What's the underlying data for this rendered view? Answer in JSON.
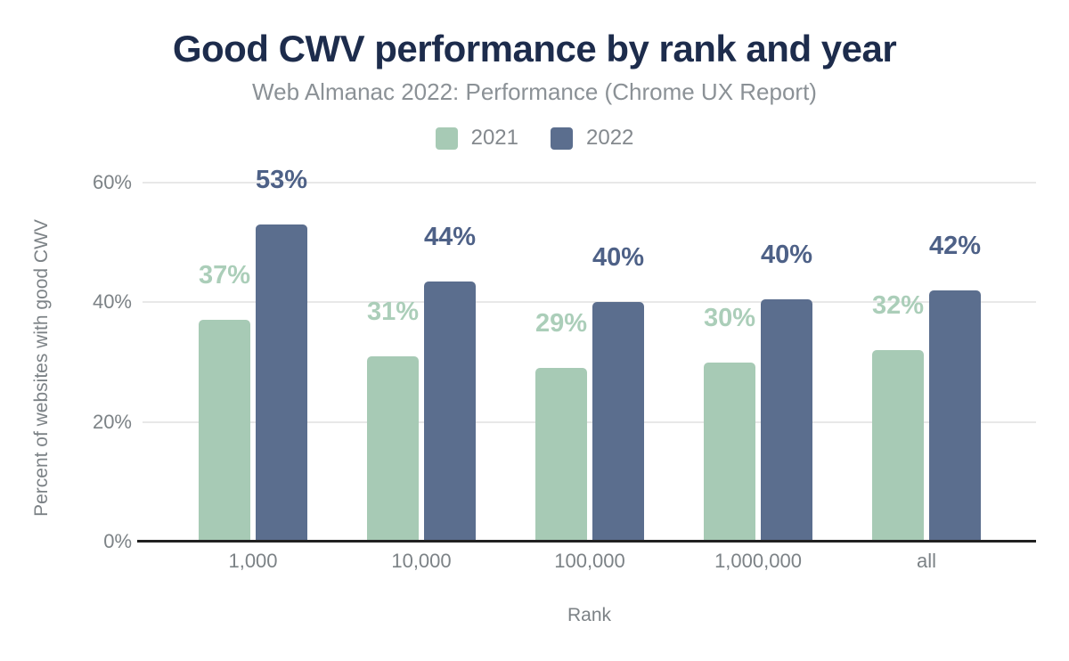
{
  "title": "Good CWV performance by rank and year",
  "subtitle": "Web Almanac 2022: Performance (Chrome UX Report)",
  "colors": {
    "background": "#ffffff",
    "title_text": "#1d2c4c",
    "subtitle_text": "#8b9196",
    "axis_text": "#7c8286",
    "legend_text": "#84898e",
    "gridline": "#e8e8e8",
    "baseline": "#212121",
    "series_2021": "#a7cab5",
    "series_2022": "#5b6e8e",
    "label_2021": "#abceb9",
    "label_2022": "#4e6187"
  },
  "chart_data": {
    "type": "bar",
    "title": "Good CWV performance by rank and year",
    "subtitle": "Web Almanac 2022: Performance (Chrome UX Report)",
    "categories": [
      "1,000",
      "10,000",
      "100,000",
      "1,000,000",
      "all"
    ],
    "series": [
      {
        "name": "2021",
        "values": [
          37,
          31,
          29,
          30,
          32
        ],
        "labels": [
          "37%",
          "31%",
          "29%",
          "30%",
          "32%"
        ],
        "display_values": [
          37,
          31,
          29,
          30,
          32
        ],
        "color": "#a7cab5",
        "label_color": "#abceb9"
      },
      {
        "name": "2022",
        "values": [
          53,
          44,
          40,
          40,
          42
        ],
        "labels": [
          "53%",
          "44%",
          "40%",
          "40%",
          "42%"
        ],
        "display_values": [
          53,
          43.5,
          40,
          40.5,
          42
        ],
        "color": "#5b6e8e",
        "label_color": "#4e6187"
      }
    ],
    "xlabel": "Rank",
    "ylabel": "Percent of websites with good CWV",
    "yticks": [
      {
        "label": "0%",
        "value": 0
      },
      {
        "label": "20%",
        "value": 20
      },
      {
        "label": "40%",
        "value": 40
      },
      {
        "label": "60%",
        "value": 60
      }
    ],
    "ylim": [
      0,
      60
    ],
    "grid": true,
    "legend_position": "top"
  }
}
